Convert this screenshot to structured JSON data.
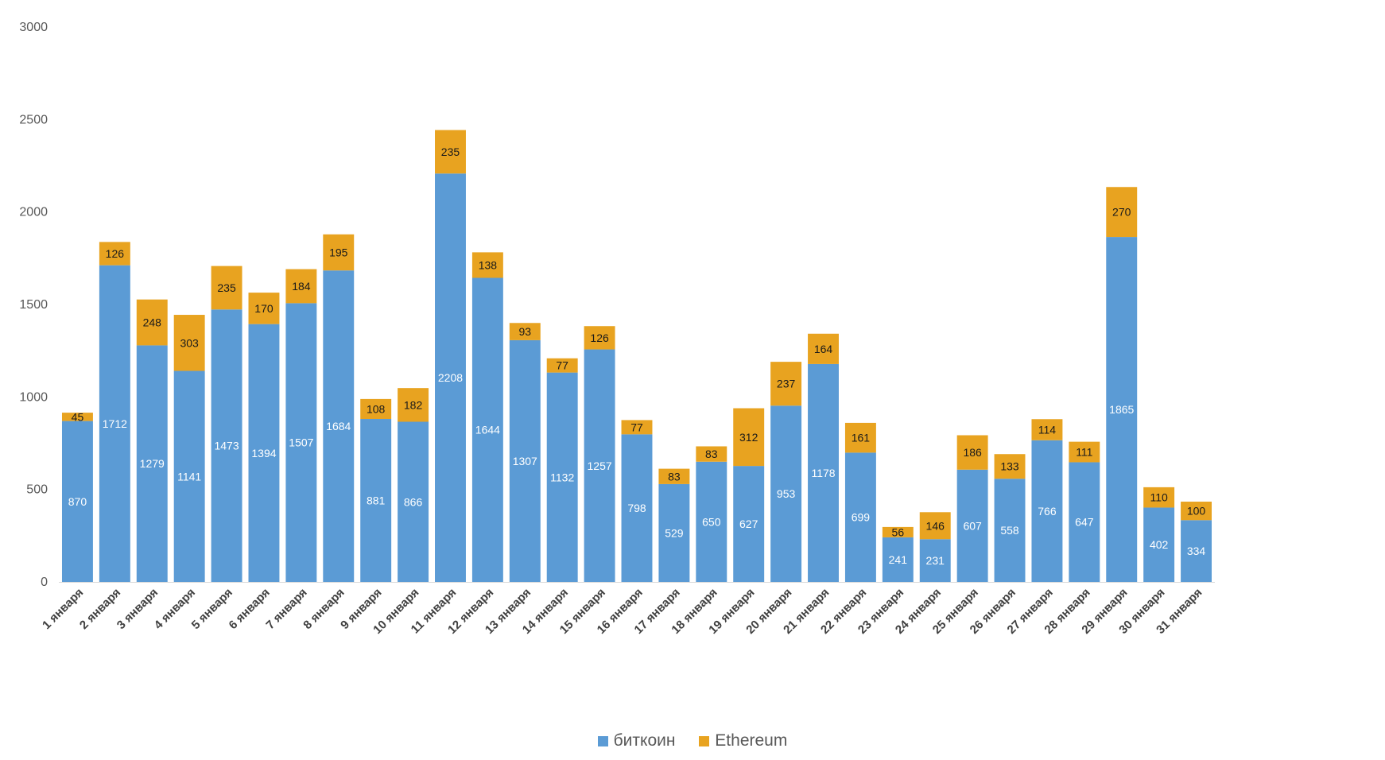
{
  "chart_data": {
    "type": "bar",
    "stacked": true,
    "categories": [
      "1 января",
      "2 января",
      "3 января",
      "4 января",
      "5 января",
      "6 января",
      "7 января",
      "8 января",
      "9 января",
      "10 января",
      "11 января",
      "12 января",
      "13 января",
      "14 января",
      "15 января",
      "16 января",
      "17 января",
      "18 января",
      "19 января",
      "20 января",
      "21 января",
      "22 января",
      "23 января",
      "24 января",
      "25 января",
      "26 января",
      "27 января",
      "28 января",
      "29 января",
      "30 января",
      "31 января"
    ],
    "series": [
      {
        "name": "биткоин",
        "color": "#5b9bd5",
        "values": [
          870,
          1712,
          1279,
          1141,
          1473,
          1394,
          1507,
          1684,
          881,
          866,
          2208,
          1644,
          1307,
          1132,
          1257,
          798,
          529,
          650,
          627,
          953,
          1178,
          699,
          241,
          231,
          607,
          558,
          766,
          647,
          1865,
          402,
          334
        ]
      },
      {
        "name": "Ethereum",
        "color": "#e8a320",
        "values": [
          45,
          126,
          248,
          303,
          235,
          170,
          184,
          195,
          108,
          182,
          235,
          138,
          93,
          77,
          126,
          77,
          83,
          83,
          312,
          237,
          164,
          161,
          56,
          146,
          186,
          133,
          114,
          111,
          270,
          110,
          100
        ]
      }
    ],
    "yticks": [
      "0",
      "500",
      "1000",
      "1500",
      "2000",
      "2500",
      "3000"
    ],
    "ylim": [
      0,
      3000
    ],
    "grid": false,
    "legend_position": "bottom"
  }
}
